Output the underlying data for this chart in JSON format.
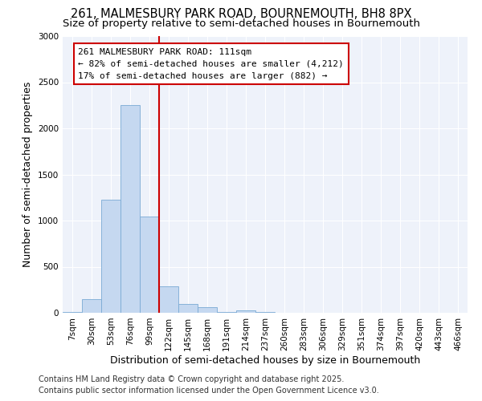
{
  "title": "261, MALMESBURY PARK ROAD, BOURNEMOUTH, BH8 8PX",
  "subtitle": "Size of property relative to semi-detached houses in Bournemouth",
  "xlabel": "Distribution of semi-detached houses by size in Bournemouth",
  "ylabel": "Number of semi-detached properties",
  "categories": [
    "7sqm",
    "30sqm",
    "53sqm",
    "76sqm",
    "99sqm",
    "122sqm",
    "145sqm",
    "168sqm",
    "191sqm",
    "214sqm",
    "237sqm",
    "260sqm",
    "283sqm",
    "306sqm",
    "329sqm",
    "351sqm",
    "374sqm",
    "397sqm",
    "420sqm",
    "443sqm",
    "466sqm"
  ],
  "values": [
    5,
    150,
    1230,
    2250,
    1040,
    290,
    100,
    60,
    5,
    30,
    5,
    0,
    0,
    0,
    0,
    0,
    0,
    0,
    0,
    0,
    0
  ],
  "bar_color": "#c5d8f0",
  "bar_edge_color": "#7aaad4",
  "vline_color": "#cc0000",
  "vline_x_index": 4.5,
  "annotation_title": "261 MALMESBURY PARK ROAD: 111sqm",
  "annotation_line1": "← 82% of semi-detached houses are smaller (4,212)",
  "annotation_line2": "17% of semi-detached houses are larger (882) →",
  "annotation_box_edge_color": "#cc0000",
  "ylim": [
    0,
    3000
  ],
  "yticks": [
    0,
    500,
    1000,
    1500,
    2000,
    2500,
    3000
  ],
  "background_color": "#eef2fa",
  "grid_color": "#ffffff",
  "footer1": "Contains HM Land Registry data © Crown copyright and database right 2025.",
  "footer2": "Contains public sector information licensed under the Open Government Licence v3.0.",
  "title_fontsize": 10.5,
  "subtitle_fontsize": 9.5,
  "axis_label_fontsize": 9,
  "tick_fontsize": 7.5,
  "annotation_fontsize": 8,
  "footer_fontsize": 7
}
